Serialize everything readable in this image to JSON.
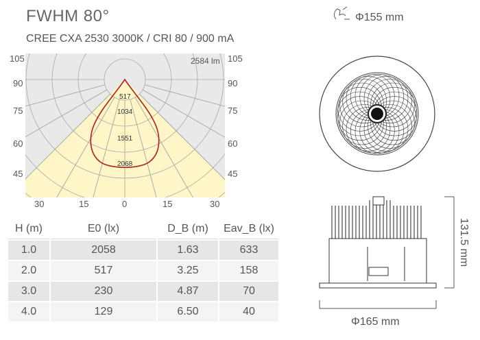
{
  "title": "FWHM  80°",
  "subtitle": "CREE CXA 2530 3000K / CRI 80 / 900 mA",
  "polar": {
    "flux_label": "2584 lm",
    "angle_labels_left": [
      "105",
      "90",
      "75",
      "60",
      "45"
    ],
    "angle_labels_right": [
      "105",
      "90",
      "75",
      "60",
      "45"
    ],
    "bottom_labels": [
      "30",
      "15",
      "0",
      "15",
      "30"
    ],
    "ring_values": [
      "517",
      "1034",
      "1551",
      "2068"
    ],
    "beam_color": "#fff6c8",
    "curve_color": "#b02020"
  },
  "table": {
    "headers": [
      "H (m)",
      "E0 (lx)",
      "D_B (m)",
      "Eav_B (lx)"
    ],
    "rows": [
      [
        "1.0",
        "2058",
        "1.63",
        "633"
      ],
      [
        "2.0",
        "517",
        "3.25",
        "158"
      ],
      [
        "3.0",
        "230",
        "4.87",
        "70"
      ],
      [
        "4.0",
        "129",
        "6.50",
        "40"
      ]
    ]
  },
  "dimensions": {
    "cutout": "Φ155 mm",
    "height": "131.5 mm",
    "diameter": "Φ165 mm",
    "cutout_icon": "hand-cutout-icon"
  }
}
